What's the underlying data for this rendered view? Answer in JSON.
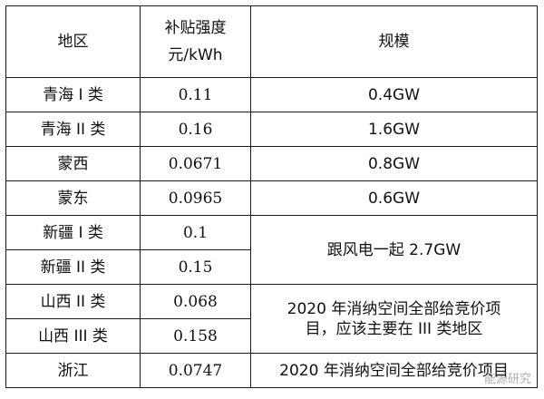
{
  "headers": {
    "region": "地区",
    "subsidy_line1": "补贴强度",
    "subsidy_line2": "元/kWh",
    "scale": "规模"
  },
  "rows": [
    {
      "region": "青海 I 类",
      "subsidy": "0.11",
      "scale": "0.4GW"
    },
    {
      "region": "青海 II 类",
      "subsidy": "0.16",
      "scale": "1.6GW"
    },
    {
      "region": "蒙西",
      "subsidy": "0.0671",
      "scale": "0.8GW"
    },
    {
      "region": "蒙东",
      "subsidy": "0.0965",
      "scale": "0.6GW"
    },
    {
      "region": "新疆 I 类",
      "subsidy": "0.1"
    },
    {
      "region": "新疆 II 类",
      "subsidy": "0.15"
    },
    {
      "region": "山西  II 类",
      "subsidy": "0.068"
    },
    {
      "region": "山西 III 类",
      "subsidy": "0.158"
    },
    {
      "region": "浙江",
      "subsidy": "0.0747",
      "scale": "2020 年消纳空间全部给竞价项目"
    }
  ],
  "merged": {
    "xinjiang_scale": "跟风电一起 2.7GW",
    "shanxi_scale_line1": "2020 年消纳空间全部给竞价项",
    "shanxi_scale_line2": "目，应该主要在 III 类地区"
  },
  "watermark": "能源研究"
}
